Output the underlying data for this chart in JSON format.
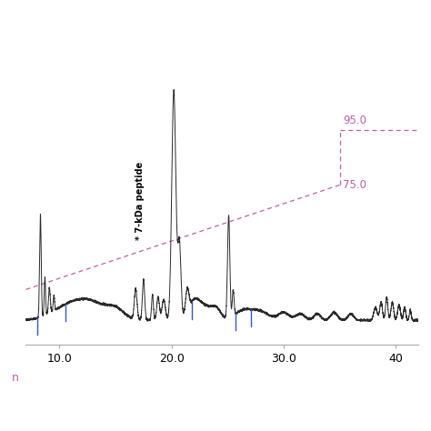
{
  "x_tick_labels": [
    "10.0",
    "20.0",
    "30.0",
    "40"
  ],
  "x_tick_positions": [
    10.0,
    20.0,
    30.0,
    40.0
  ],
  "xlim": [
    7.0,
    42.0
  ],
  "ylim": [
    -0.08,
    1.0
  ],
  "gradient_color": "#c060a0",
  "background_color": "#ffffff",
  "chromatogram_color": "#2a2a2a",
  "blue_tick_color": "#3355cc"
}
